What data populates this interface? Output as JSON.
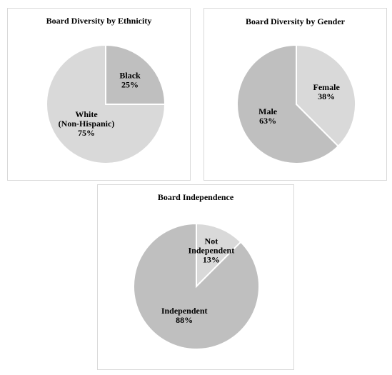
{
  "chart_data": [
    {
      "type": "pie",
      "title": "Board Diversity by Ethnicity",
      "slices": [
        {
          "label": "Black",
          "label_lines": [
            "Black"
          ],
          "value": 25,
          "value_label": "25%",
          "color": "#bfbfbf"
        },
        {
          "label": "White (Non-Hispanic)",
          "label_lines": [
            "White",
            "(Non-Hispanic)"
          ],
          "value": 75,
          "value_label": "75%",
          "color": "#d9d9d9"
        }
      ]
    },
    {
      "type": "pie",
      "title": "Board Diversity by Gender",
      "slices": [
        {
          "label": "Female",
          "label_lines": [
            "Female"
          ],
          "value": 37.5,
          "value_label": "38%",
          "color": "#d9d9d9"
        },
        {
          "label": "Male",
          "label_lines": [
            "Male"
          ],
          "value": 62.5,
          "value_label": "63%",
          "color": "#bfbfbf"
        }
      ]
    },
    {
      "type": "pie",
      "title": "Board Independence",
      "slices": [
        {
          "label": "Not Independent",
          "label_lines": [
            "Not",
            "Independent"
          ],
          "value": 12.5,
          "value_label": "13%",
          "color": "#d9d9d9"
        },
        {
          "label": "Independent",
          "label_lines": [
            "Independent"
          ],
          "value": 87.5,
          "value_label": "88%",
          "color": "#bfbfbf"
        }
      ]
    }
  ]
}
